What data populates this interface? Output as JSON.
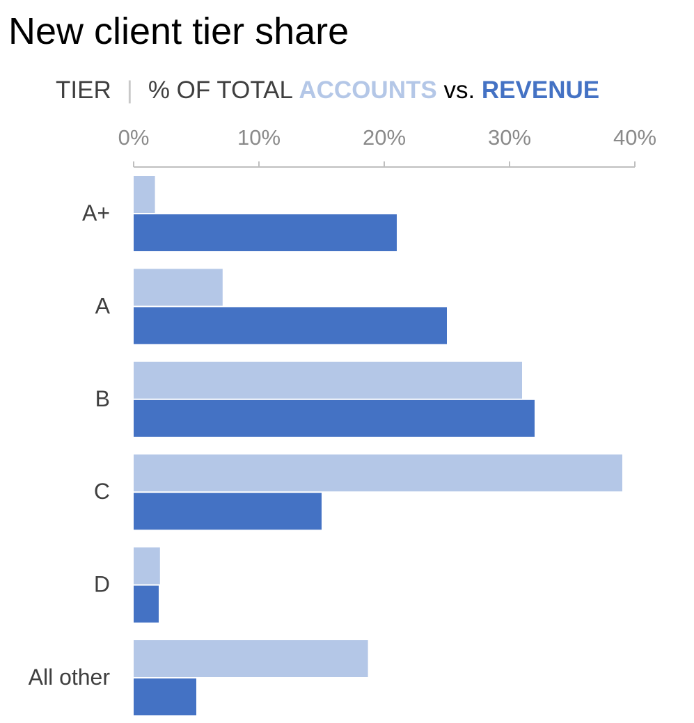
{
  "colors": {
    "accounts": "#b4c7e7",
    "revenue": "#4472c4",
    "axis": "#bfbfbf",
    "tick_text": "#8a8a8a",
    "label_text": "#3f3f3f"
  },
  "header": {
    "title": "New client tier share",
    "subtitle_tier": "TIER",
    "subtitle_sep": "|",
    "subtitle_prefix": "% OF TOTAL",
    "subtitle_accounts": "ACCOUNTS",
    "subtitle_vs": "vs.",
    "subtitle_revenue": "REVENUE"
  },
  "chart_data": {
    "type": "bar",
    "orientation": "horizontal",
    "title": "New client tier share",
    "subtitle": "TIER | % OF TOTAL ACCOUNTS vs. REVENUE",
    "categories": [
      "A+",
      "A",
      "B",
      "C",
      "D",
      "All other"
    ],
    "series": [
      {
        "name": "ACCOUNTS",
        "values": [
          1.7,
          7.1,
          31,
          39,
          2.1,
          18.7
        ]
      },
      {
        "name": "REVENUE",
        "values": [
          21,
          25,
          32,
          15,
          2,
          5
        ]
      }
    ],
    "xlim": [
      0,
      40
    ],
    "ticks": [
      "0%",
      "10%",
      "20%",
      "30%",
      "40%"
    ],
    "tick_values": [
      0,
      10,
      20,
      30,
      40
    ],
    "axis_position": "top",
    "grid": false,
    "legend": "in subtitle"
  }
}
